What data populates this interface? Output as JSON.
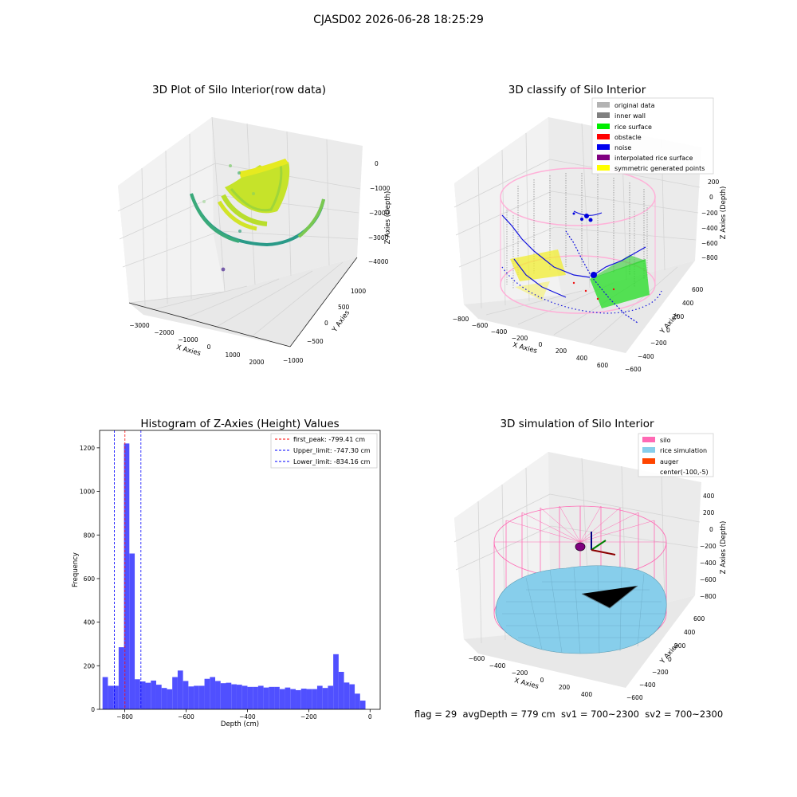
{
  "suptitle": "CJASD02 2026-06-28 18:25:29",
  "footer": {
    "text": "flag = 29  avgDepth = 779 cm  sv1 = 700~2300  sv2 = 700~2300"
  },
  "chart_data": [
    {
      "type": "scatter",
      "projection": "3d",
      "title": "3D Plot of Silo Interior(row data)",
      "xlabel": "X Axies",
      "ylabel": "Y Axies",
      "zlabel": "Z Axies (Depth)",
      "x_ticks": [
        "−3000",
        "−2000",
        "−1000",
        "0",
        "1000",
        "2000"
      ],
      "y_ticks": [
        "1000",
        "500",
        "0",
        "−500",
        "−1000"
      ],
      "z_ticks": [
        "0",
        "−1000",
        "−2000",
        "−3000",
        "−4000"
      ],
      "colormap": "viridis",
      "grid": true
    },
    {
      "type": "scatter",
      "projection": "3d",
      "title": "3D classify of Silo Interior",
      "xlabel": "X Axies",
      "ylabel": "Y Axies",
      "zlabel": "Z Axies (Depth)",
      "x_ticks": [
        "−800",
        "−600",
        "−400",
        "−200",
        "0",
        "200",
        "400",
        "600"
      ],
      "y_ticks": [
        "600",
        "400",
        "200",
        "0",
        "−200",
        "−400",
        "−600"
      ],
      "z_ticks": [
        "200",
        "0",
        "−200",
        "−400",
        "−600",
        "−800"
      ],
      "legend": [
        {
          "label": "original data",
          "color": "#b3b3b3"
        },
        {
          "label": "inner wall",
          "color": "#808080"
        },
        {
          "label": "rice surface",
          "color": "#00ee00"
        },
        {
          "label": "obstacle",
          "color": "#ff0000"
        },
        {
          "label": "noise",
          "color": "#0000ee"
        },
        {
          "label": "interpolated rice surface",
          "color": "#800080"
        },
        {
          "label": "symmetric generated points",
          "color": "#ffff00"
        }
      ],
      "legend_loc": "upper right",
      "grid": true
    },
    {
      "type": "bar",
      "title": "Histogram of Z-Axies (Height) Values",
      "xlabel": "Depth (cm)",
      "ylabel": "Frequency",
      "xlim": [
        -882,
        33
      ],
      "ylim": [
        0,
        1280
      ],
      "x_ticks": [
        -800,
        -600,
        -400,
        -200,
        0
      ],
      "x_tick_labels": [
        "−800",
        "−600",
        "−400",
        "−200",
        "0"
      ],
      "y_ticks": [
        0,
        200,
        400,
        600,
        800,
        1000,
        1200
      ],
      "bin_start": -872.5,
      "bin_width": 17.5,
      "values": [
        148,
        108,
        108,
        285,
        1220,
        715,
        138,
        128,
        122,
        132,
        113,
        98,
        92,
        148,
        178,
        130,
        105,
        108,
        108,
        140,
        148,
        130,
        120,
        122,
        115,
        113,
        108,
        103,
        103,
        108,
        100,
        103,
        103,
        93,
        100,
        93,
        88,
        95,
        93,
        93,
        108,
        98,
        108,
        253,
        172,
        123,
        115,
        72,
        40
      ],
      "bar_color": "#5050ff",
      "lines": [
        {
          "label": "first_peak: -799.41 cm",
          "x": -799.41,
          "color": "#ff0000",
          "style": "dashed"
        },
        {
          "label": "Upper_limit: -747.30 cm",
          "x": -747.3,
          "color": "#0000ff",
          "style": "dashed"
        },
        {
          "label": "Lower_limit: -834.16 cm",
          "x": -834.16,
          "color": "#0000ff",
          "style": "dashed"
        }
      ],
      "legend_loc": "upper right"
    },
    {
      "type": "scatter",
      "projection": "3d",
      "title": "3D simulation of Silo Interior",
      "xlabel": "X Axies",
      "ylabel": "Y Axies",
      "zlabel": "Z Axies (Depth)",
      "x_ticks": [
        "−600",
        "−400",
        "−200",
        "0",
        "200",
        "400"
      ],
      "y_ticks": [
        "600",
        "400",
        "200",
        "0",
        "−200",
        "−400",
        "−600"
      ],
      "z_ticks": [
        "400",
        "200",
        "0",
        "−200",
        "−400",
        "−600",
        "−800"
      ],
      "legend": [
        {
          "label": "silo",
          "color": "#ff69b4"
        },
        {
          "label": "rice simulation",
          "color": "#87ceeb"
        },
        {
          "label": "auger",
          "color": "#ff4500"
        },
        {
          "label": "center(-100,-5)",
          "color": ""
        }
      ],
      "legend_loc": "upper right",
      "grid": true
    }
  ]
}
